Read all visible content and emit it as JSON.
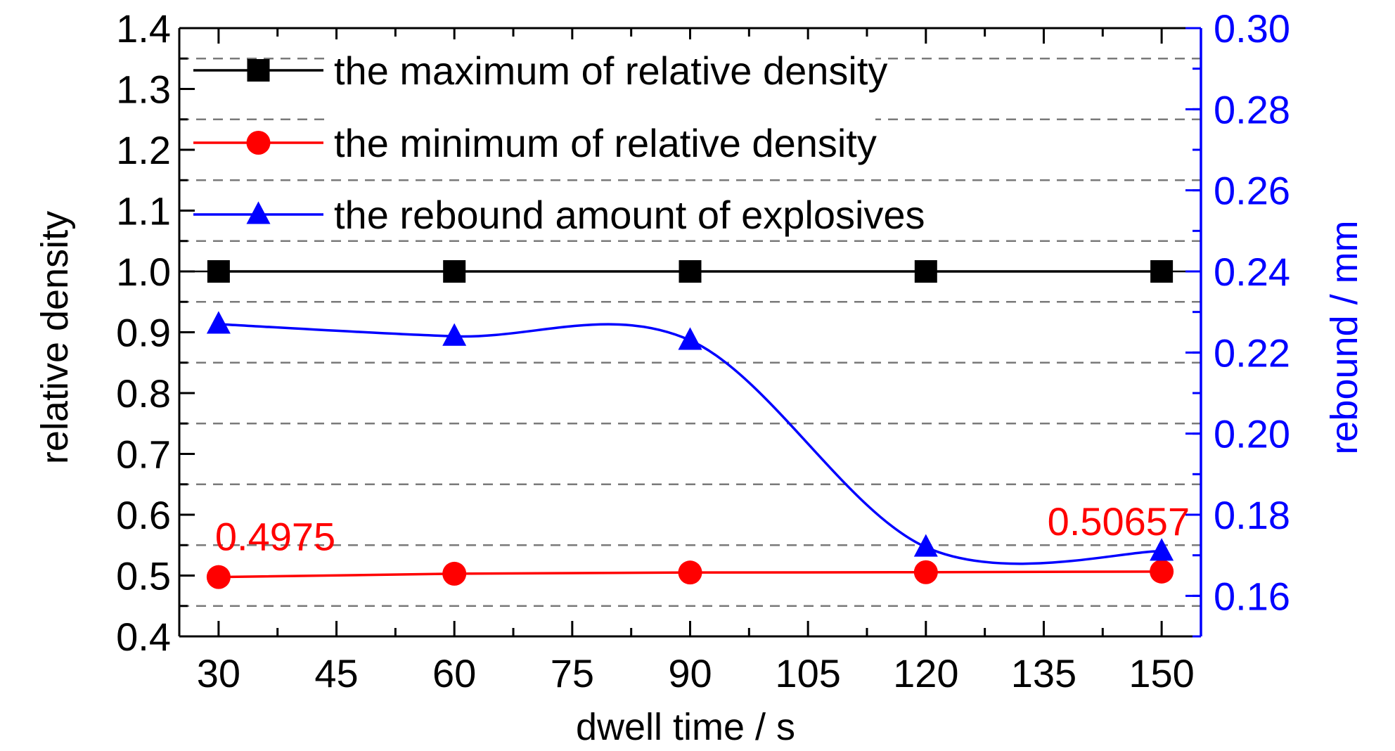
{
  "chart_data": {
    "type": "line",
    "xlabel": "dwell time / s",
    "ylabel_left": "relative density",
    "ylabel_right": "rebound / mm",
    "x": [
      30,
      60,
      90,
      120,
      150
    ],
    "xlim": [
      25,
      155
    ],
    "xticks": [
      "30",
      "45",
      "60",
      "75",
      "90",
      "105",
      "120",
      "135",
      "150"
    ],
    "ylim_left": [
      0.4,
      1.4
    ],
    "yticks_left": [
      "0.4",
      "0.5",
      "0.6",
      "0.7",
      "0.8",
      "0.9",
      "1.0",
      "1.1",
      "1.2",
      "1.3",
      "1.4"
    ],
    "ylim_right": [
      0.15,
      0.3
    ],
    "yticks_right": [
      "0.16",
      "0.18",
      "0.20",
      "0.22",
      "0.24",
      "0.26",
      "0.28",
      "0.30"
    ],
    "grid": "horizontal dashed",
    "legend_position": "top-left",
    "series": [
      {
        "name": "the maximum of relative density",
        "axis": "left",
        "marker": "square",
        "color": "#000000",
        "values": [
          1.0,
          1.0,
          1.0,
          1.0,
          1.0
        ]
      },
      {
        "name": "the minimum of relative density",
        "axis": "left",
        "marker": "circle",
        "color": "#ff0000",
        "values": [
          0.4975,
          0.503,
          0.505,
          0.5055,
          0.50657
        ]
      },
      {
        "name": "the rebound amount of explosives",
        "axis": "right",
        "marker": "triangle",
        "color": "#0000ff",
        "values": [
          0.227,
          0.224,
          0.223,
          0.172,
          0.171
        ]
      }
    ],
    "annotations": [
      {
        "text": "0.4975",
        "color": "#ff0000"
      },
      {
        "text": "0.50657",
        "color": "#ff0000"
      }
    ]
  }
}
